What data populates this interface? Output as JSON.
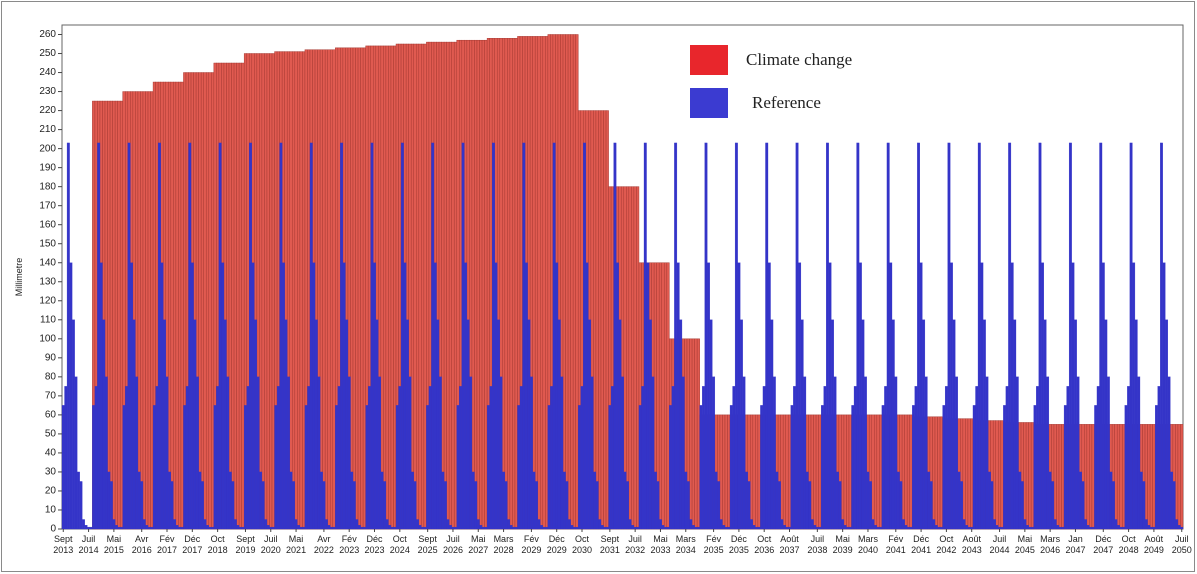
{
  "chart_data": {
    "type": "bar",
    "y_label": "Millimetre",
    "categories": [
      "Sept 2013",
      null,
      null,
      null,
      null,
      null,
      null,
      null,
      null,
      null,
      "Juil 2014",
      null,
      null,
      null,
      null,
      null,
      null,
      null,
      null,
      null,
      "Mai 2015",
      null,
      null,
      null,
      null,
      null,
      null,
      null,
      null,
      null,
      null,
      "Avr 2016",
      null,
      null,
      null,
      null,
      null,
      null,
      null,
      null,
      null,
      "Fév 2017",
      null,
      null,
      null,
      null,
      null,
      null,
      null,
      null,
      null,
      "Déc 2017",
      null,
      null,
      null,
      null,
      null,
      null,
      null,
      null,
      null,
      "Oct 2018",
      null,
      null,
      null,
      null,
      null,
      null,
      null,
      null,
      null,
      null,
      "Sept 2019",
      null,
      null,
      null,
      null,
      null,
      null,
      null,
      null,
      null,
      "Juil 2020",
      null,
      null,
      null,
      null,
      null,
      null,
      null,
      null,
      null,
      "Mai 2021",
      null,
      null,
      null,
      null,
      null,
      null,
      null,
      null,
      null,
      null,
      "Avr 2022",
      null,
      null,
      null,
      null,
      null,
      null,
      null,
      null,
      null,
      "Fév 2023",
      null,
      null,
      null,
      null,
      null,
      null,
      null,
      null,
      null,
      "Déc 2023",
      null,
      null,
      null,
      null,
      null,
      null,
      null,
      null,
      null,
      "Oct 2024",
      null,
      null,
      null,
      null,
      null,
      null,
      null,
      null,
      null,
      null,
      "Sept 2025",
      null,
      null,
      null,
      null,
      null,
      null,
      null,
      null,
      null,
      "Juil 2026",
      null,
      null,
      null,
      null,
      null,
      null,
      null,
      null,
      null,
      "Mai 2027",
      null,
      null,
      null,
      null,
      null,
      null,
      null,
      null,
      null,
      "Mars 2028",
      null,
      null,
      null,
      null,
      null,
      null,
      null,
      null,
      null,
      null,
      "Fév 2029",
      null,
      null,
      null,
      null,
      null,
      null,
      null,
      null,
      null,
      "Déc 2029",
      null,
      null,
      null,
      null,
      null,
      null,
      null,
      null,
      null,
      "Oct 2030",
      null,
      null,
      null,
      null,
      null,
      null,
      null,
      null,
      null,
      null,
      "Sept 2031",
      null,
      null,
      null,
      null,
      null,
      null,
      null,
      null,
      null,
      "Juil 2032",
      null,
      null,
      null,
      null,
      null,
      null,
      null,
      null,
      null,
      "Mai 2033",
      null,
      null,
      null,
      null,
      null,
      null,
      null,
      null,
      null,
      "Mars 2034",
      null,
      null,
      null,
      null,
      null,
      null,
      null,
      null,
      null,
      null,
      "Fév 2035",
      null,
      null,
      null,
      null,
      null,
      null,
      null,
      null,
      null,
      "Déc 2035",
      null,
      null,
      null,
      null,
      null,
      null,
      null,
      null,
      null,
      "Oct 2036",
      null,
      null,
      null,
      null,
      null,
      null,
      null,
      null,
      null,
      "Août 2037",
      null,
      null,
      null,
      null,
      null,
      null,
      null,
      null,
      null,
      null,
      "Juil 2038",
      null,
      null,
      null,
      null,
      null,
      null,
      null,
      null,
      null,
      "Mai 2039",
      null,
      null,
      null,
      null,
      null,
      null,
      null,
      null,
      null,
      "Mars 2040",
      null,
      null,
      null,
      null,
      null,
      null,
      null,
      null,
      null,
      null,
      "Fév 2041",
      null,
      null,
      null,
      null,
      null,
      null,
      null,
      null,
      null,
      "Déc 2041",
      null,
      null,
      null,
      null,
      null,
      null,
      null,
      null,
      null,
      "Oct 2042",
      null,
      null,
      null,
      null,
      null,
      null,
      null,
      null,
      null,
      "Août 2043",
      null,
      null,
      null,
      null,
      null,
      null,
      null,
      null,
      null,
      null,
      "Juil 2044",
      null,
      null,
      null,
      null,
      null,
      null,
      null,
      null,
      null,
      "Mai 2045",
      null,
      null,
      null,
      null,
      null,
      null,
      null,
      null,
      null,
      "Mars 2046",
      null,
      null,
      null,
      null,
      null,
      null,
      null,
      null,
      null,
      "Jan 2047",
      null,
      null,
      null,
      null,
      null,
      null,
      null,
      null,
      null,
      null,
      "Déc 2047",
      null,
      null,
      null,
      null,
      null,
      null,
      null,
      null,
      null,
      "Oct 2048",
      null,
      null,
      null,
      null,
      null,
      null,
      null,
      null,
      null,
      "Août 2049",
      null,
      null,
      null,
      null,
      null,
      null,
      null,
      null,
      null,
      null,
      "Juil 2050"
    ],
    "series": [
      {
        "name": "Climate change",
        "color": "#e05a50",
        "legend_color": "#e8262c",
        "values": [
          0,
          0,
          0,
          0,
          0,
          0,
          0,
          0,
          0,
          0,
          0,
          0,
          225,
          225,
          225,
          225,
          225,
          225,
          225,
          225,
          225,
          225,
          225,
          225,
          230,
          230,
          230,
          230,
          230,
          230,
          230,
          230,
          230,
          230,
          230,
          230,
          235,
          235,
          235,
          235,
          235,
          235,
          235,
          235,
          235,
          235,
          235,
          235,
          240,
          240,
          240,
          240,
          240,
          240,
          240,
          240,
          240,
          240,
          240,
          240,
          245,
          245,
          245,
          245,
          245,
          245,
          245,
          245,
          245,
          245,
          245,
          245,
          250,
          250,
          250,
          250,
          250,
          250,
          250,
          250,
          250,
          250,
          250,
          250,
          251,
          251,
          251,
          251,
          251,
          251,
          251,
          251,
          251,
          251,
          251,
          251,
          252,
          252,
          252,
          252,
          252,
          252,
          252,
          252,
          252,
          252,
          252,
          252,
          253,
          253,
          253,
          253,
          253,
          253,
          253,
          253,
          253,
          253,
          253,
          253,
          254,
          254,
          254,
          254,
          254,
          254,
          254,
          254,
          254,
          254,
          254,
          254,
          255,
          255,
          255,
          255,
          255,
          255,
          255,
          255,
          255,
          255,
          255,
          255,
          256,
          256,
          256,
          256,
          256,
          256,
          256,
          256,
          256,
          256,
          256,
          256,
          257,
          257,
          257,
          257,
          257,
          257,
          257,
          257,
          257,
          257,
          257,
          257,
          258,
          258,
          258,
          258,
          258,
          258,
          258,
          258,
          258,
          258,
          258,
          258,
          259,
          259,
          259,
          259,
          259,
          259,
          259,
          259,
          259,
          259,
          259,
          259,
          260,
          260,
          260,
          260,
          260,
          260,
          260,
          260,
          260,
          260,
          260,
          260,
          220,
          220,
          220,
          220,
          220,
          220,
          220,
          220,
          220,
          220,
          220,
          220,
          180,
          180,
          180,
          180,
          180,
          180,
          180,
          180,
          180,
          180,
          180,
          180,
          140,
          140,
          140,
          140,
          140,
          140,
          140,
          140,
          140,
          140,
          140,
          140,
          100,
          100,
          100,
          100,
          100,
          100,
          100,
          100,
          100,
          100,
          100,
          100,
          60,
          60,
          60,
          60,
          60,
          60,
          60,
          60,
          60,
          60,
          60,
          60,
          60,
          60,
          60,
          60,
          60,
          60,
          60,
          60,
          60,
          60,
          60,
          60,
          60,
          60,
          60,
          60,
          60,
          60,
          60,
          60,
          60,
          60,
          60,
          60,
          60,
          60,
          60,
          60,
          60,
          60,
          60,
          60,
          60,
          60,
          60,
          60,
          60,
          60,
          60,
          60,
          60,
          60,
          60,
          60,
          60,
          60,
          60,
          60,
          60,
          60,
          60,
          60,
          60,
          60,
          60,
          60,
          60,
          60,
          60,
          60,
          60,
          60,
          60,
          60,
          60,
          60,
          60,
          60,
          60,
          60,
          60,
          60,
          59,
          59,
          59,
          59,
          59,
          59,
          59,
          59,
          59,
          59,
          59,
          59,
          58,
          58,
          58,
          58,
          58,
          58,
          58,
          58,
          58,
          58,
          58,
          58,
          57,
          57,
          57,
          57,
          57,
          57,
          57,
          57,
          57,
          57,
          57,
          57,
          56,
          56,
          56,
          56,
          56,
          56,
          56,
          56,
          56,
          56,
          56,
          56,
          55,
          55,
          55,
          55,
          55,
          55,
          55,
          55,
          55,
          55,
          55,
          55,
          55,
          55,
          55,
          55,
          55,
          55,
          55,
          55,
          55,
          55,
          55,
          55,
          55,
          55,
          55,
          55,
          55,
          55,
          55,
          55,
          55,
          55,
          55,
          55,
          55,
          55,
          55,
          55,
          55,
          55,
          55,
          55,
          55,
          55,
          55,
          55,
          55,
          55,
          55,
          55,
          55,
          55,
          55,
          55,
          55,
          55,
          55
        ]
      },
      {
        "name": "Reference",
        "color": "#3434c8",
        "legend_color": "#3b3bd1",
        "values": [
          65,
          75,
          203,
          140,
          110,
          80,
          30,
          25,
          5,
          2,
          1,
          1,
          65,
          75,
          203,
          140,
          110,
          80,
          30,
          25,
          5,
          2,
          1,
          1,
          65,
          75,
          203,
          140,
          110,
          80,
          30,
          25,
          5,
          2,
          1,
          1,
          65,
          75,
          203,
          140,
          110,
          80,
          30,
          25,
          5,
          2,
          1,
          1,
          65,
          75,
          203,
          140,
          110,
          80,
          30,
          25,
          5,
          2,
          1,
          1,
          65,
          75,
          203,
          140,
          110,
          80,
          30,
          25,
          5,
          2,
          1,
          1,
          65,
          75,
          203,
          140,
          110,
          80,
          30,
          25,
          5,
          2,
          1,
          1,
          65,
          75,
          203,
          140,
          110,
          80,
          30,
          25,
          5,
          2,
          1,
          1,
          65,
          75,
          203,
          140,
          110,
          80,
          30,
          25,
          5,
          2,
          1,
          1,
          65,
          75,
          203,
          140,
          110,
          80,
          30,
          25,
          5,
          2,
          1,
          1,
          65,
          75,
          203,
          140,
          110,
          80,
          30,
          25,
          5,
          2,
          1,
          1,
          65,
          75,
          203,
          140,
          110,
          80,
          30,
          25,
          5,
          2,
          1,
          1,
          65,
          75,
          203,
          140,
          110,
          80,
          30,
          25,
          5,
          2,
          1,
          1,
          65,
          75,
          203,
          140,
          110,
          80,
          30,
          25,
          5,
          2,
          1,
          1,
          65,
          75,
          203,
          140,
          110,
          80,
          30,
          25,
          5,
          2,
          1,
          1,
          65,
          75,
          203,
          140,
          110,
          80,
          30,
          25,
          5,
          2,
          1,
          1,
          65,
          75,
          203,
          140,
          110,
          80,
          30,
          25,
          5,
          2,
          1,
          1,
          65,
          75,
          203,
          140,
          110,
          80,
          30,
          25,
          5,
          2,
          1,
          1,
          65,
          75,
          203,
          140,
          110,
          80,
          30,
          25,
          5,
          2,
          1,
          1,
          65,
          75,
          203,
          140,
          110,
          80,
          30,
          25,
          5,
          2,
          1,
          1,
          65,
          75,
          203,
          140,
          110,
          80,
          30,
          25,
          5,
          2,
          1,
          1,
          65,
          75,
          203,
          140,
          110,
          80,
          30,
          25,
          5,
          2,
          1,
          1,
          65,
          75,
          203,
          140,
          110,
          80,
          30,
          25,
          5,
          2,
          1,
          1,
          65,
          75,
          203,
          140,
          110,
          80,
          30,
          25,
          5,
          2,
          1,
          1,
          65,
          75,
          203,
          140,
          110,
          80,
          30,
          25,
          5,
          2,
          1,
          1,
          65,
          75,
          203,
          140,
          110,
          80,
          30,
          25,
          5,
          2,
          1,
          1,
          65,
          75,
          203,
          140,
          110,
          80,
          30,
          25,
          5,
          2,
          1,
          1,
          65,
          75,
          203,
          140,
          110,
          80,
          30,
          25,
          5,
          2,
          1,
          1,
          65,
          75,
          203,
          140,
          110,
          80,
          30,
          25,
          5,
          2,
          1,
          1,
          65,
          75,
          203,
          140,
          110,
          80,
          30,
          25,
          5,
          2,
          1,
          1,
          65,
          75,
          203,
          140,
          110,
          80,
          30,
          25,
          5,
          2,
          1,
          1,
          65,
          75,
          203,
          140,
          110,
          80,
          30,
          25,
          5,
          2,
          1,
          1,
          65,
          75,
          203,
          140,
          110,
          80,
          30,
          25,
          5,
          2,
          1,
          1,
          65,
          75,
          203,
          140,
          110,
          80,
          30,
          25,
          5,
          2,
          1,
          1,
          65,
          75,
          203,
          140,
          110,
          80,
          30,
          25,
          5,
          2,
          1,
          1,
          65,
          75,
          203,
          140,
          110,
          80,
          30,
          25,
          5,
          2,
          1,
          1,
          65,
          75,
          203,
          140,
          110,
          80,
          30,
          25,
          5,
          2,
          1
        ]
      }
    ],
    "ylim": [
      0,
      265
    ],
    "yticks": [
      0,
      10,
      20,
      30,
      40,
      50,
      60,
      70,
      80,
      90,
      100,
      110,
      120,
      130,
      140,
      150,
      160,
      170,
      180,
      190,
      200,
      210,
      220,
      230,
      240,
      250,
      260
    ],
    "grid": false
  }
}
